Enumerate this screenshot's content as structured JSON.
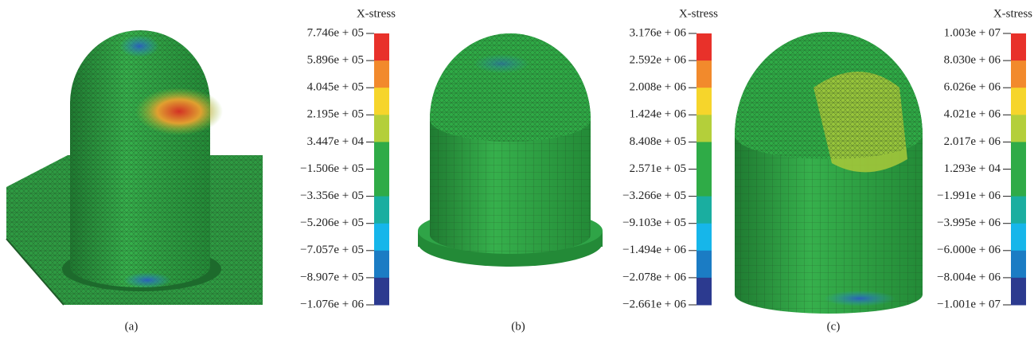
{
  "colorbar_colors": [
    "#e8312a",
    "#f28a2c",
    "#f6d52b",
    "#b4cf3a",
    "#2fab47",
    "#2fab47",
    "#1aaea0",
    "#16b6ea",
    "#1b7cc4",
    "#2c3a8f"
  ],
  "panels": [
    {
      "label": "(a)",
      "colorbar_title": "X-stress",
      "ticks": [
        "7.746e + 05",
        "5.896e + 05",
        "4.045e + 05",
        "2.195e + 05",
        "3.447e + 04",
        "−1.506e + 05",
        "−3.356e + 05",
        "−5.206e + 05",
        "−7.057e + 05",
        "−8.907e + 05",
        "−1.076e + 06"
      ]
    },
    {
      "label": "(b)",
      "colorbar_title": "X-stress",
      "ticks": [
        "3.176e + 06",
        "2.592e + 06",
        "2.008e + 06",
        "1.424e + 06",
        "8.408e + 05",
        "2.571e + 05",
        "−3.266e + 05",
        "−9.103e + 05",
        "−1.494e + 06",
        "−2.078e + 06",
        "−2.661e + 06"
      ]
    },
    {
      "label": "(c)",
      "colorbar_title": "X-stress",
      "ticks": [
        "1.003e + 07",
        "8.030e + 06",
        "6.026e + 06",
        "4.021e + 06",
        "2.017e + 06",
        "1.293e + 04",
        "−1.991e + 06",
        "−3.995e + 06",
        "−6.000e + 06",
        "−8.004e + 06",
        "−1.001e + 07"
      ]
    }
  ]
}
